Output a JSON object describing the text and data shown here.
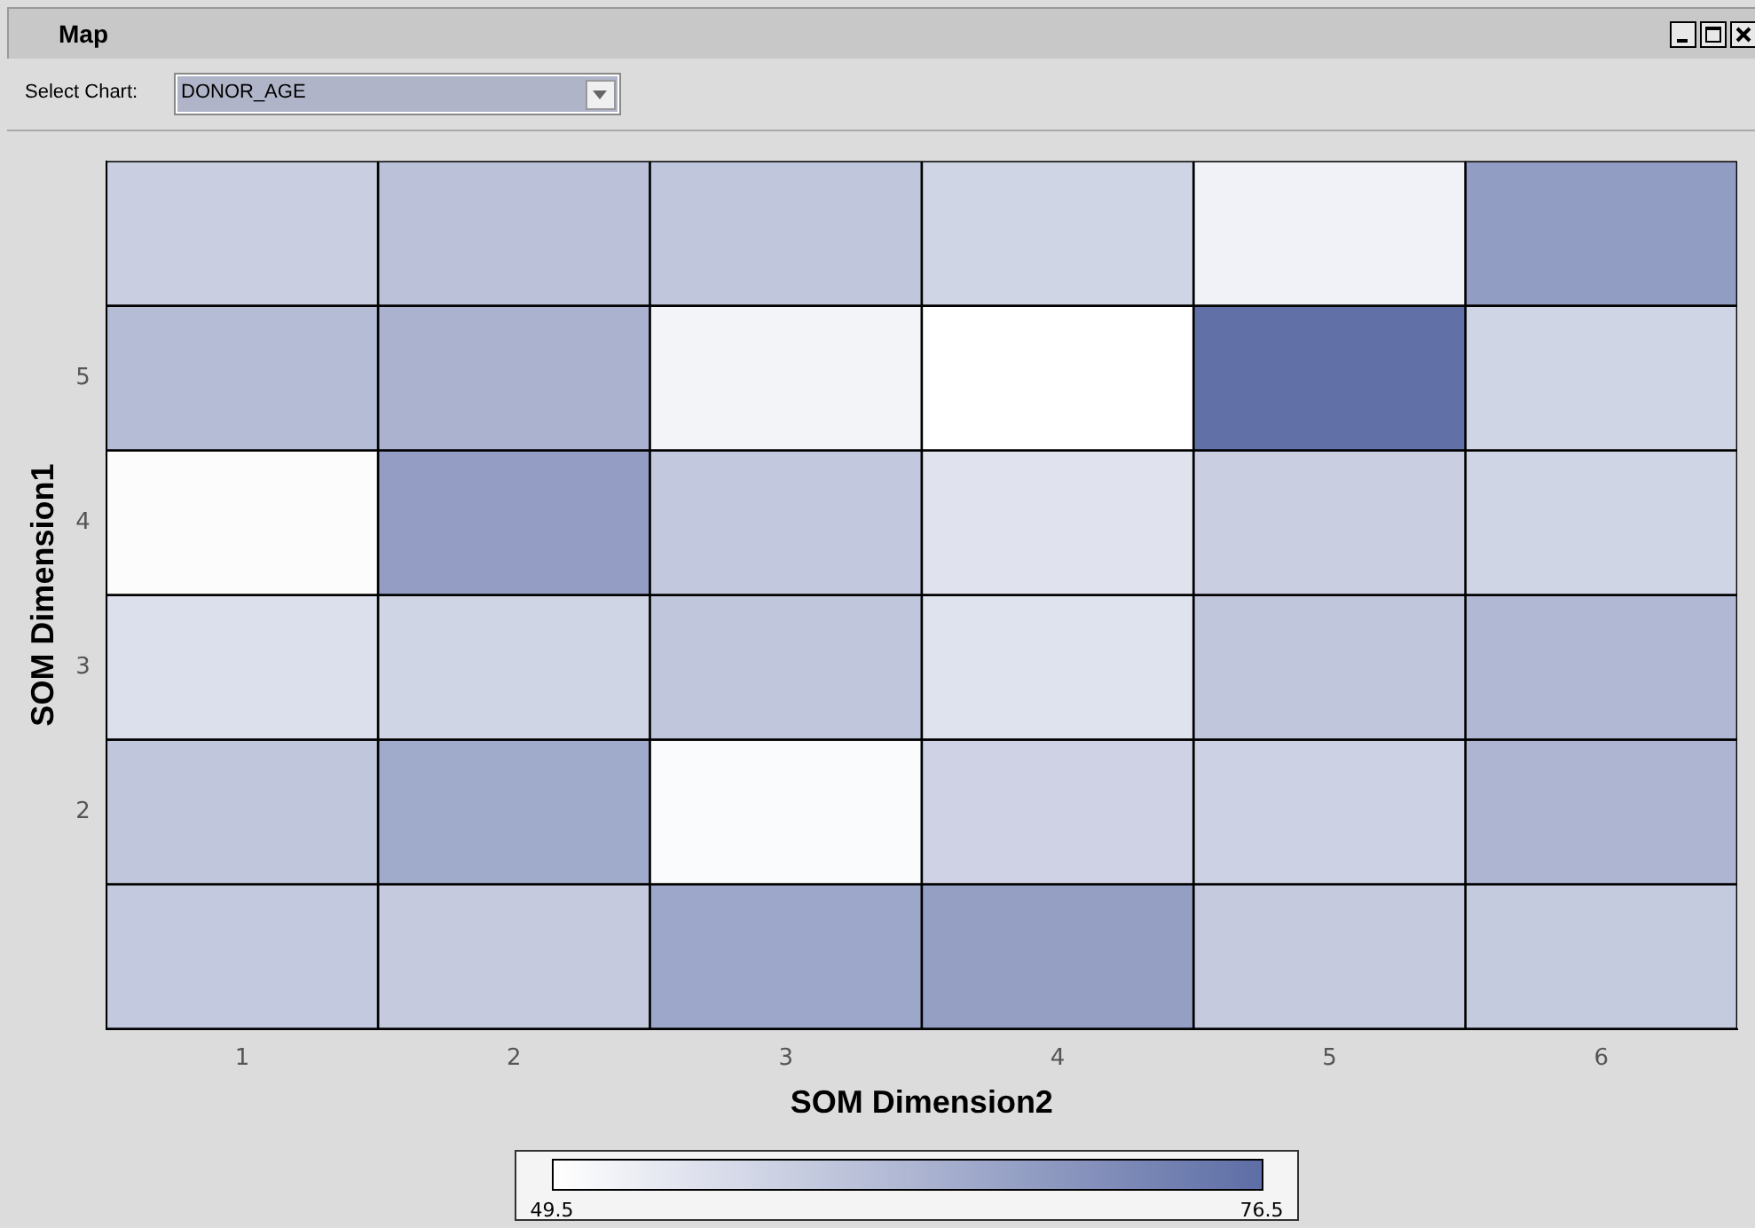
{
  "chart_data": {
    "type": "heatmap",
    "title": "Map",
    "xlabel": "SOM Dimension2",
    "ylabel": "SOM Dimension1",
    "annotations": [
      "Select Chart:",
      "DONOR_AGE"
    ],
    "categories": [
      "1",
      "2",
      "3",
      "4",
      "5",
      "6"
    ],
    "y_categories": [
      null,
      "5",
      "4",
      "3",
      "2",
      null
    ],
    "cells": [
      [
        58.6,
        61.1,
        60,
        57.4,
        52,
        67.8
      ],
      [
        62,
        63.8,
        51.5,
        49.5,
        76,
        57.3
      ],
      [
        50,
        67.5,
        59.8,
        54.7,
        58.6,
        57.4
      ],
      [
        55.4,
        57.4,
        60,
        54.8,
        60,
        62.7
      ],
      [
        60.1,
        65.4,
        50.3,
        57.8,
        58,
        63.3
      ],
      [
        59.5,
        59.3,
        65.9,
        67.3,
        59.3,
        59.2
      ]
    ],
    "clim": [
      49.5,
      76.5
    ],
    "cticks": [
      49.5,
      76.5
    ]
  }
}
